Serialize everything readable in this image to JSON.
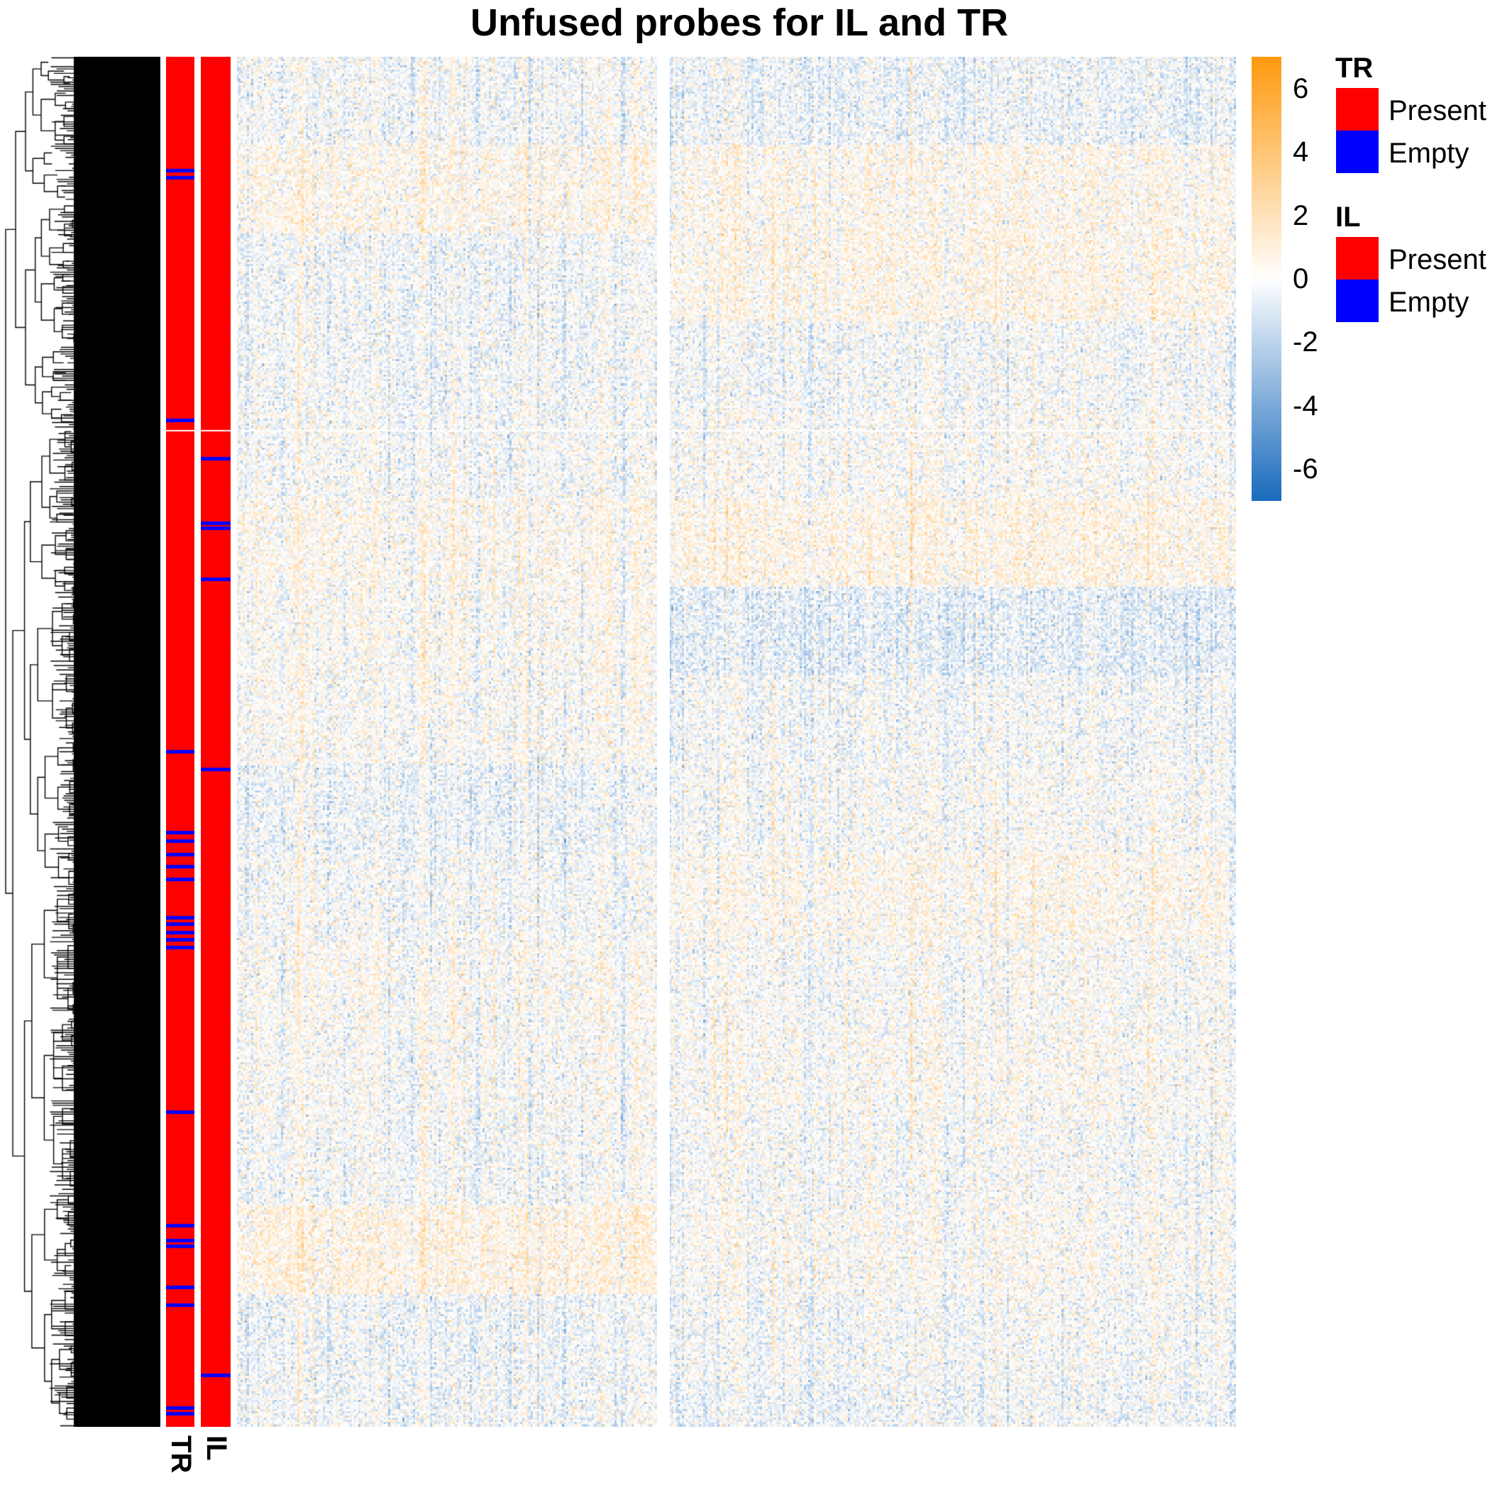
{
  "chart_data": {
    "type": "heatmap",
    "title": "Unfused probes for IL and TR",
    "value_range": [
      -7,
      7
    ],
    "colorbar": {
      "ticks": [
        "6",
        "4",
        "2",
        "0",
        "-2",
        "-4",
        "-6"
      ],
      "tick_values": [
        6,
        4,
        2,
        0,
        -2,
        -4,
        -6
      ],
      "low_color": "#1a6bbd",
      "mid_color": "#ffffff",
      "high_color": "#ff9a0f"
    },
    "row_splits": 2,
    "column_splits": 2,
    "row_dendrogram": "left",
    "annotations": [
      {
        "name": "TR",
        "label": "TR",
        "present_color": "#ff0000",
        "empty_color": "#0000ff",
        "empty_row_fractions": [
          0.083,
          0.088,
          0.265,
          0.507,
          0.566,
          0.572,
          0.582,
          0.591,
          0.6,
          0.628,
          0.633,
          0.639,
          0.644,
          0.65,
          0.77,
          0.853,
          0.864,
          0.868,
          0.898,
          0.911,
          0.986,
          0.99
        ]
      },
      {
        "name": "IL",
        "label": "IL",
        "present_color": "#ff0000",
        "empty_color": "#0000ff",
        "empty_row_fractions": [
          0.293,
          0.34,
          0.344,
          0.381,
          0.52,
          0.962
        ]
      }
    ],
    "legends": [
      {
        "title": "TR",
        "items": [
          {
            "label": "Present",
            "color": "#ff0000"
          },
          {
            "label": "Empty",
            "color": "#0000ff"
          }
        ]
      },
      {
        "title": "IL",
        "items": [
          {
            "label": "Present",
            "color": "#ff0000"
          },
          {
            "label": "Empty",
            "color": "#0000ff"
          }
        ]
      }
    ]
  }
}
